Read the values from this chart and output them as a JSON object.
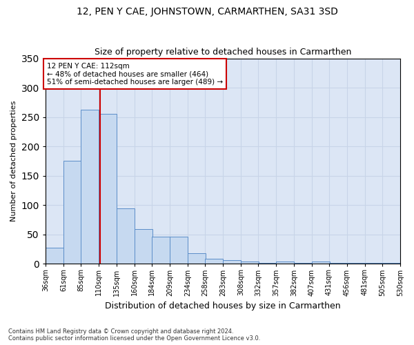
{
  "title": "12, PEN Y CAE, JOHNSTOWN, CARMARTHEN, SA31 3SD",
  "subtitle": "Size of property relative to detached houses in Carmarthen",
  "xlabel": "Distribution of detached houses by size in Carmarthen",
  "ylabel": "Number of detached properties",
  "bar_left_edges": [
    36,
    61,
    85,
    110,
    135,
    160,
    184,
    209,
    234,
    258,
    283,
    308,
    332,
    357,
    382,
    407,
    431,
    456,
    481,
    505
  ],
  "bar_widths": [
    25,
    25,
    25,
    25,
    25,
    25,
    25,
    25,
    25,
    25,
    25,
    25,
    25,
    25,
    25,
    25,
    25,
    25,
    25,
    25
  ],
  "bar_heights": [
    27,
    175,
    263,
    255,
    94,
    59,
    46,
    46,
    18,
    9,
    6,
    4,
    2,
    4,
    1,
    4,
    1,
    1,
    1,
    1
  ],
  "bar_color": "#c6d9f0",
  "bar_edge_color": "#5b8dc8",
  "grid_color": "#c8d4e8",
  "background_color": "#dce6f5",
  "vline_x": 112,
  "vline_color": "#cc0000",
  "annotation_text": "12 PEN Y CAE: 112sqm\n← 48% of detached houses are smaller (464)\n51% of semi-detached houses are larger (489) →",
  "annotation_box_color": "#ffffff",
  "annotation_box_edge": "#cc0000",
  "ylim": [
    0,
    350
  ],
  "tick_labels": [
    "36sqm",
    "61sqm",
    "85sqm",
    "110sqm",
    "135sqm",
    "160sqm",
    "184sqm",
    "209sqm",
    "234sqm",
    "258sqm",
    "283sqm",
    "308sqm",
    "332sqm",
    "357sqm",
    "382sqm",
    "407sqm",
    "431sqm",
    "456sqm",
    "481sqm",
    "505sqm",
    "530sqm"
  ],
  "footnote": "Contains HM Land Registry data © Crown copyright and database right 2024.\nContains public sector information licensed under the Open Government Licence v3.0."
}
